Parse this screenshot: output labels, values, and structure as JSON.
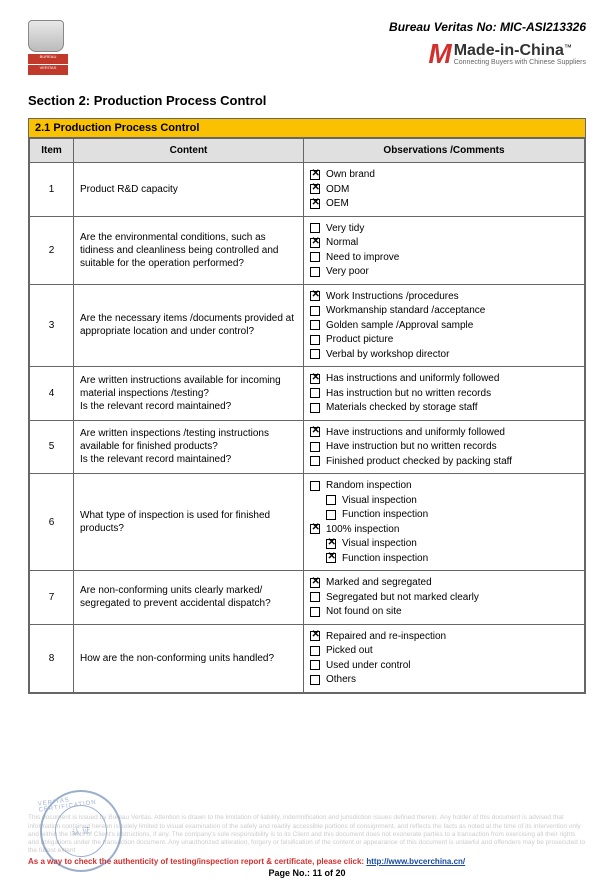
{
  "header": {
    "bv_no_label": "Bureau Veritas No: MIC-ASI213326",
    "bv_logo_top": "BV",
    "bv_logo_band1": "BUREAU",
    "bv_logo_band2": "VERITAS",
    "mic_m": "M",
    "mic_main": "Made-in-China",
    "mic_tm": "™",
    "mic_sub": "Connecting Buyers with Chinese Suppliers"
  },
  "section": {
    "title": "Section 2: Production Process Control",
    "banner": "2.1 Production Process Control",
    "col_item": "Item",
    "col_content": "Content",
    "col_obs": "Observations /Comments",
    "rows": [
      {
        "item": "1",
        "content": "Product R&D capacity",
        "options": [
          {
            "label": "Own brand",
            "checked": true,
            "indent": false
          },
          {
            "label": "ODM",
            "checked": true,
            "indent": false
          },
          {
            "label": "OEM",
            "checked": true,
            "indent": false
          }
        ]
      },
      {
        "item": "2",
        "content": "Are the environmental conditions, such as tidiness and cleanliness being controlled and suitable for the operation performed?",
        "options": [
          {
            "label": "Very tidy",
            "checked": false,
            "indent": false
          },
          {
            "label": "Normal",
            "checked": true,
            "indent": false
          },
          {
            "label": "Need to improve",
            "checked": false,
            "indent": false
          },
          {
            "label": "Very poor",
            "checked": false,
            "indent": false
          }
        ]
      },
      {
        "item": "3",
        "content": "Are the necessary items /documents provided at appropriate location and under control?",
        "options": [
          {
            "label": "Work Instructions /procedures",
            "checked": true,
            "indent": false
          },
          {
            "label": "Workmanship standard /acceptance",
            "checked": false,
            "indent": false
          },
          {
            "label": "Golden sample /Approval sample",
            "checked": false,
            "indent": false
          },
          {
            "label": "Product picture",
            "checked": false,
            "indent": false
          },
          {
            "label": "Verbal by workshop director",
            "checked": false,
            "indent": false
          }
        ]
      },
      {
        "item": "4",
        "content": "Are written instructions available for incoming material inspections /testing?\nIs the relevant record maintained?",
        "options": [
          {
            "label": "Has instructions and uniformly followed",
            "checked": true,
            "indent": false
          },
          {
            "label": "Has instruction but no written records",
            "checked": false,
            "indent": false
          },
          {
            "label": "Materials checked by storage staff",
            "checked": false,
            "indent": false
          }
        ]
      },
      {
        "item": "5",
        "content": "Are written inspections /testing instructions available for finished products?\nIs the relevant record maintained?",
        "options": [
          {
            "label": "Have instructions and uniformly followed",
            "checked": true,
            "indent": false
          },
          {
            "label": "Have instruction but no written records",
            "checked": false,
            "indent": false
          },
          {
            "label": "Finished product checked by packing staff",
            "checked": false,
            "indent": false
          }
        ]
      },
      {
        "item": "6",
        "content": "What type of inspection is used for finished products?",
        "options": [
          {
            "label": "Random inspection",
            "checked": false,
            "indent": false
          },
          {
            "label": "Visual inspection",
            "checked": false,
            "indent": true
          },
          {
            "label": "Function inspection",
            "checked": false,
            "indent": true
          },
          {
            "label": "100% inspection",
            "checked": true,
            "indent": false
          },
          {
            "label": "Visual inspection",
            "checked": true,
            "indent": true
          },
          {
            "label": "Function inspection",
            "checked": true,
            "indent": true
          }
        ]
      },
      {
        "item": "7",
        "content": "Are non-conforming units clearly marked/ segregated to prevent accidental dispatch?",
        "options": [
          {
            "label": "Marked and segregated",
            "checked": true,
            "indent": false
          },
          {
            "label": "Segregated but not marked clearly",
            "checked": false,
            "indent": false
          },
          {
            "label": "Not found on site",
            "checked": false,
            "indent": false
          }
        ]
      },
      {
        "item": "8",
        "content": "How are the non-conforming units handled?",
        "options": [
          {
            "label": "Repaired and re-inspection",
            "checked": true,
            "indent": false
          },
          {
            "label": "Picked out",
            "checked": false,
            "indent": false
          },
          {
            "label": "Used under control",
            "checked": false,
            "indent": false
          },
          {
            "label": "Others",
            "checked": false,
            "indent": false
          }
        ]
      }
    ]
  },
  "footer": {
    "disclaimer": "This document is issued by Bureau Veritas. Attention is drawn to the limitation of liability, indemnification and jurisdiction issues defined therein. Any holder of this document is advised that information contained hereon is solely limited to visual examination of the safely and readily accessible portions of consignment, and reflects the facts as noted at the time of its intervention only and within the limits of Client's instructions, if any. The company's sole responsibility is to its Client and this document does not exonerate parties to a transaction from exercising all their rights and obligations under the transaction document. Any unauthorized alteration, forgery or falsification of the content or appearance of this document is unlawful and offenders may be prosecuted to the fullest extent",
    "auth_prefix": "As a way to check the authenticity of testing/inspection report & certificate, please click: ",
    "auth_url": "http://www.bvcerchina.cn/",
    "page_no": "Page No.: 11 of 20",
    "stamp_outer": "VERITAS CERTIFICATION",
    "stamp_inner": "认 证"
  },
  "style": {
    "banner_bg": "#f9c100",
    "th_bg": "#e0e0e0",
    "border": "#666666",
    "accent_red": "#d32f2f",
    "stamp_blue": "#4a6fa5",
    "disclaimer_color": "#cccccc"
  }
}
